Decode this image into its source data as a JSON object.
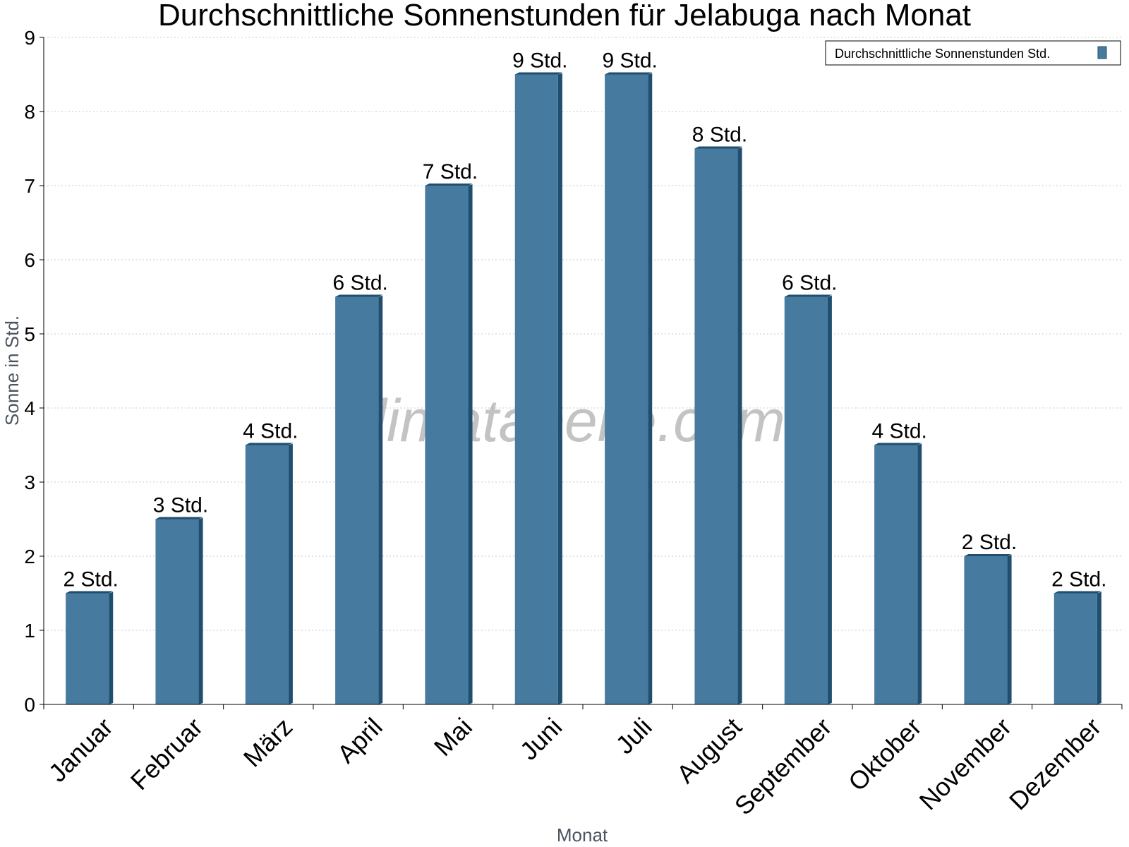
{
  "chart_data": {
    "type": "bar",
    "title": "Durchschnittliche Sonnenstunden für Jelabuga nach Monat",
    "xlabel": "Monat",
    "ylabel": "Sonne in Std.",
    "categories": [
      "Januar",
      "Februar",
      "März",
      "April",
      "Mai",
      "Juni",
      "Juli",
      "August",
      "September",
      "Oktober",
      "November",
      "Dezember"
    ],
    "series": [
      {
        "name": "Durchschnittliche Sonnenstunden Std.",
        "values": [
          1.5,
          2.5,
          3.5,
          5.5,
          7,
          8.5,
          8.5,
          7.5,
          5.5,
          3.5,
          2,
          1.5
        ],
        "labels": [
          "2 Std.",
          "3 Std.",
          "4 Std.",
          "6 Std.",
          "7 Std.",
          "9 Std.",
          "9 Std.",
          "8 Std.",
          "6 Std.",
          "4 Std.",
          "2 Std.",
          "2 Std."
        ]
      }
    ],
    "ylim": [
      0,
      9
    ],
    "yticks": [
      "0",
      "1",
      "2",
      "3",
      "4",
      "5",
      "6",
      "7",
      "8",
      "9"
    ],
    "grid": true,
    "legend_position": "top-right",
    "colors": {
      "bar": "#467a9e",
      "bar_side": "#1f4e6e",
      "grid": "#c8c8c8"
    },
    "watermark": "klimatabelle.com"
  }
}
